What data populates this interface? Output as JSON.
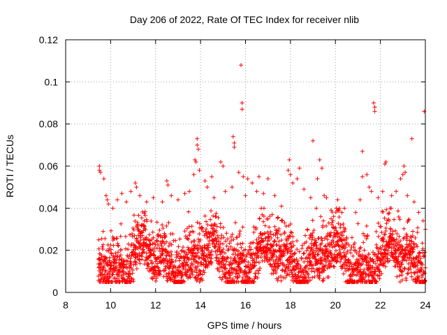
{
  "chart_data": {
    "type": "scatter",
    "title": "Day 206 of 2022, Rate Of TEC Index for receiver nlib",
    "xlabel": "GPS time / hours",
    "ylabel": "ROTI / TECUs",
    "xlim": [
      8,
      24
    ],
    "ylim": [
      0,
      0.12
    ],
    "x_ticks": [
      8,
      10,
      12,
      14,
      16,
      18,
      20,
      22,
      24
    ],
    "x_tick_labels": [
      "8",
      "10",
      "12",
      "14",
      "16",
      "18",
      "20",
      "22",
      "24"
    ],
    "y_ticks": [
      0,
      0.02,
      0.04,
      0.06,
      0.08,
      0.1,
      0.12
    ],
    "y_tick_labels": [
      "0",
      "0.02",
      "0.04",
      "0.06",
      "0.08",
      "0.1",
      "0.12"
    ],
    "grid": true,
    "marker": "plus",
    "color": "#ff0000",
    "data_start_hour": 9.45,
    "data_end_hour": 24,
    "bulk_range": [
      0.005,
      0.035
    ],
    "points": [
      [
        9.5,
        0.06
      ],
      [
        9.5,
        0.058
      ],
      [
        9.55,
        0.057
      ],
      [
        9.7,
        0.054
      ],
      [
        9.8,
        0.046
      ],
      [
        9.85,
        0.044
      ],
      [
        9.9,
        0.042
      ],
      [
        10.1,
        0.04
      ],
      [
        10.3,
        0.044
      ],
      [
        10.5,
        0.047
      ],
      [
        10.7,
        0.043
      ],
      [
        10.9,
        0.048
      ],
      [
        11.1,
        0.052
      ],
      [
        11.15,
        0.05
      ],
      [
        11.3,
        0.046
      ],
      [
        11.6,
        0.043
      ],
      [
        11.9,
        0.045
      ],
      [
        12.3,
        0.043
      ],
      [
        12.5,
        0.053
      ],
      [
        12.55,
        0.051
      ],
      [
        12.7,
        0.046
      ],
      [
        13.0,
        0.044
      ],
      [
        13.3,
        0.047
      ],
      [
        13.5,
        0.048
      ],
      [
        13.7,
        0.056
      ],
      [
        13.75,
        0.063
      ],
      [
        13.8,
        0.062
      ],
      [
        13.85,
        0.073
      ],
      [
        13.85,
        0.07
      ],
      [
        13.9,
        0.068
      ],
      [
        13.95,
        0.058
      ],
      [
        14.2,
        0.053
      ],
      [
        14.3,
        0.05
      ],
      [
        14.5,
        0.055
      ],
      [
        14.6,
        0.045
      ],
      [
        14.9,
        0.062
      ],
      [
        15.0,
        0.06
      ],
      [
        15.1,
        0.048
      ],
      [
        15.4,
        0.05
      ],
      [
        15.45,
        0.074
      ],
      [
        15.5,
        0.071
      ],
      [
        15.5,
        0.069
      ],
      [
        15.7,
        0.057
      ],
      [
        15.8,
        0.108
      ],
      [
        15.85,
        0.09
      ],
      [
        15.85,
        0.087
      ],
      [
        15.9,
        0.055
      ],
      [
        16.0,
        0.046
      ],
      [
        16.1,
        0.054
      ],
      [
        16.3,
        0.052
      ],
      [
        16.5,
        0.048
      ],
      [
        16.6,
        0.055
      ],
      [
        16.8,
        0.047
      ],
      [
        17.0,
        0.054
      ],
      [
        17.3,
        0.046
      ],
      [
        17.6,
        0.041
      ],
      [
        17.9,
        0.058
      ],
      [
        17.95,
        0.063
      ],
      [
        18.0,
        0.056
      ],
      [
        18.1,
        0.052
      ],
      [
        18.3,
        0.054
      ],
      [
        18.4,
        0.059
      ],
      [
        18.6,
        0.049
      ],
      [
        18.9,
        0.045
      ],
      [
        19.0,
        0.072
      ],
      [
        19.2,
        0.054
      ],
      [
        19.3,
        0.063
      ],
      [
        19.4,
        0.059
      ],
      [
        19.5,
        0.046
      ],
      [
        19.6,
        0.045
      ],
      [
        20.1,
        0.044
      ],
      [
        20.4,
        0.04
      ],
      [
        20.9,
        0.038
      ],
      [
        21.1,
        0.044
      ],
      [
        21.2,
        0.055
      ],
      [
        21.2,
        0.067
      ],
      [
        21.4,
        0.056
      ],
      [
        21.5,
        0.05
      ],
      [
        21.6,
        0.048
      ],
      [
        21.7,
        0.09
      ],
      [
        21.75,
        0.088
      ],
      [
        21.75,
        0.086
      ],
      [
        21.9,
        0.045
      ],
      [
        22.1,
        0.048
      ],
      [
        22.2,
        0.061
      ],
      [
        22.25,
        0.062
      ],
      [
        22.5,
        0.046
      ],
      [
        22.7,
        0.048
      ],
      [
        22.9,
        0.054
      ],
      [
        23.0,
        0.056
      ],
      [
        23.05,
        0.06
      ],
      [
        23.1,
        0.057
      ],
      [
        23.2,
        0.046
      ],
      [
        23.4,
        0.073
      ],
      [
        23.5,
        0.043
      ],
      [
        23.7,
        0.038
      ],
      [
        23.9,
        0.034
      ],
      [
        23.95,
        0.086
      ],
      [
        24.0,
        0.03
      ]
    ]
  }
}
